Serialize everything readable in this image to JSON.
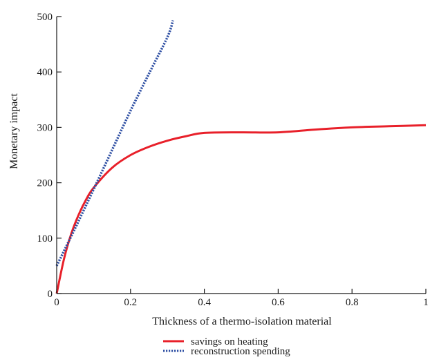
{
  "chart_data": {
    "type": "line",
    "xlabel": "Thickness of a thermo-isolation material",
    "ylabel": "Monetary impact",
    "xlim": [
      0,
      1
    ],
    "ylim": [
      0,
      500
    ],
    "xticks": [
      0,
      0.2,
      0.4,
      0.6,
      0.8,
      1
    ],
    "xtick_labels": [
      "0",
      "0.2",
      "0.4",
      "0.6",
      "0.8",
      "1"
    ],
    "yticks": [
      0,
      100,
      200,
      300,
      400,
      500
    ],
    "ytick_labels": [
      "0",
      "100",
      "200",
      "300",
      "400",
      "500"
    ],
    "grid": false,
    "legend_position": "bottom-center",
    "series": [
      {
        "name": "savings on heating",
        "color": "#e8202a",
        "style": "solid",
        "x": [
          0,
          0.02,
          0.04,
          0.06,
          0.08,
          0.1,
          0.15,
          0.2,
          0.25,
          0.3,
          0.35,
          0.4,
          0.5,
          0.6,
          0.7,
          0.8,
          0.9,
          1.0
        ],
        "y": [
          0,
          63,
          109,
          143,
          170,
          191,
          227,
          250,
          265,
          276,
          284,
          290,
          291,
          291,
          296,
          300,
          302,
          304
        ]
      },
      {
        "name": "reconstruction spending",
        "color": "#2e4fa3",
        "style": "dotted",
        "x": [
          0,
          0.05,
          0.1,
          0.15,
          0.2,
          0.25,
          0.3,
          0.315
        ],
        "y": [
          50,
          118,
          188,
          259,
          330,
          397,
          463,
          493
        ]
      }
    ]
  }
}
